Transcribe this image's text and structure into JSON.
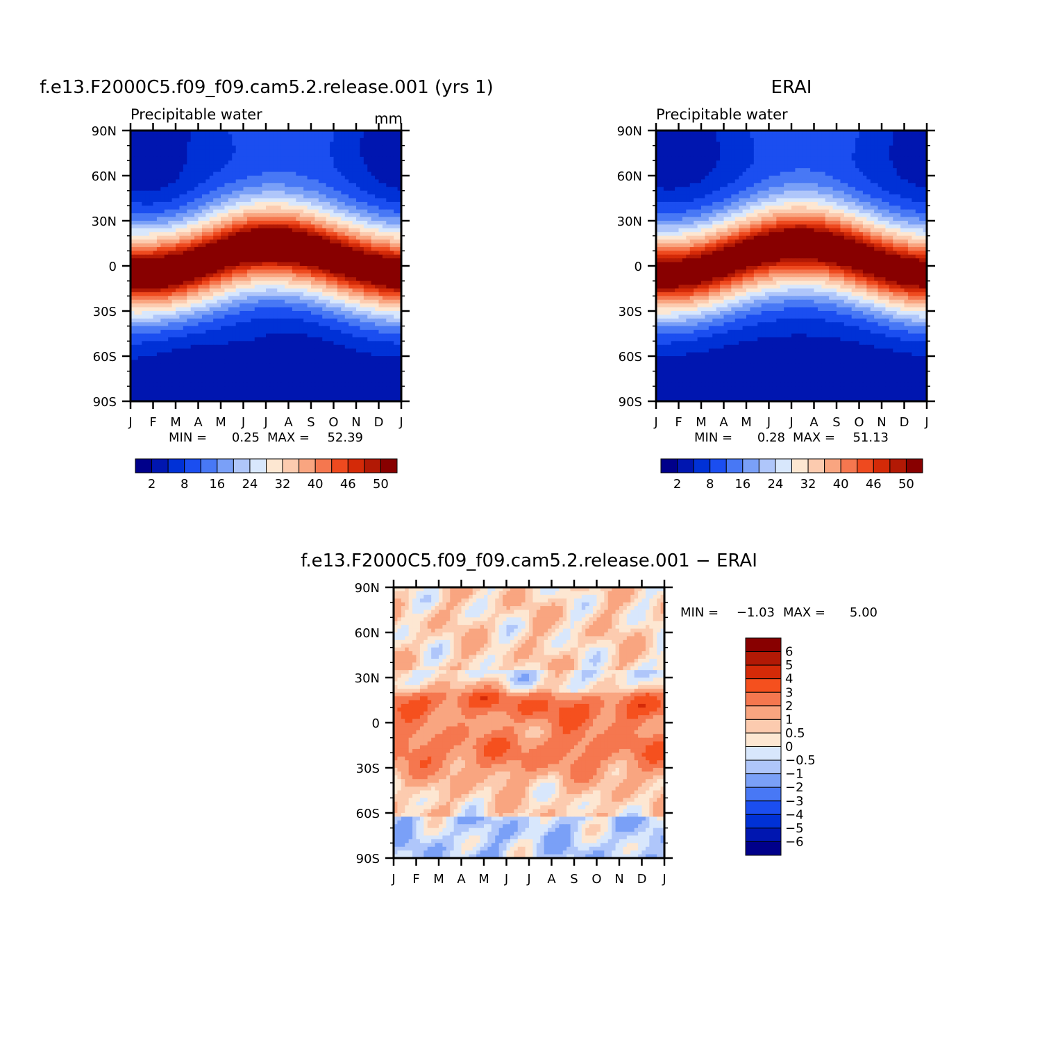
{
  "page": {
    "background": "#ffffff"
  },
  "chart_data": [
    {
      "type": "heatmap",
      "title": "f.e13.F2000C5.f09_f09.cam5.2.release.001 (yrs 1)",
      "subtitle": "Precipitable water",
      "units": "mm",
      "x_ticks": [
        "J",
        "F",
        "M",
        "A",
        "M",
        "J",
        "J",
        "A",
        "S",
        "O",
        "N",
        "D",
        "J"
      ],
      "y_ticks": [
        "90N",
        "60N",
        "30N",
        "0",
        "30S",
        "60S",
        "90S"
      ],
      "ylim": [
        -90,
        90
      ],
      "stats": {
        "min_label": "MIN =",
        "min": "0.25",
        "max_label": "MAX =",
        "max": "52.39"
      },
      "colorbar": {
        "orientation": "horizontal",
        "colors": [
          "#00008a",
          "#0016b0",
          "#0031d6",
          "#1b4ef0",
          "#4878f5",
          "#7aa0f7",
          "#afc6fa",
          "#d8e7fc",
          "#fde7d2",
          "#fccbaf",
          "#f9a580",
          "#f5774f",
          "#ee4a1f",
          "#d42a08",
          "#b21905",
          "#880000"
        ],
        "labels": [
          "2",
          "8",
          "16",
          "24",
          "32",
          "40",
          "46",
          "50"
        ]
      },
      "field": "model"
    },
    {
      "type": "heatmap",
      "title": "ERAI",
      "subtitle": "Precipitable water",
      "units": "",
      "x_ticks": [
        "J",
        "F",
        "M",
        "A",
        "M",
        "J",
        "J",
        "A",
        "S",
        "O",
        "N",
        "D",
        "J"
      ],
      "y_ticks": [
        "90N",
        "60N",
        "30N",
        "0",
        "30S",
        "60S",
        "90S"
      ],
      "ylim": [
        -90,
        90
      ],
      "stats": {
        "min_label": "MIN =",
        "min": "0.28",
        "max_label": "MAX =",
        "max": "51.13"
      },
      "colorbar": {
        "orientation": "horizontal",
        "colors": [
          "#00008a",
          "#0016b0",
          "#0031d6",
          "#1b4ef0",
          "#4878f5",
          "#7aa0f7",
          "#afc6fa",
          "#d8e7fc",
          "#fde7d2",
          "#fccbaf",
          "#f9a580",
          "#f5774f",
          "#ee4a1f",
          "#d42a08",
          "#b21905",
          "#880000"
        ],
        "labels": [
          "2",
          "8",
          "16",
          "24",
          "32",
          "40",
          "46",
          "50"
        ]
      },
      "field": "obs"
    },
    {
      "type": "heatmap",
      "title": "f.e13.F2000C5.f09_f09.cam5.2.release.001 − ERAI",
      "x_ticks": [
        "J",
        "F",
        "M",
        "A",
        "M",
        "J",
        "J",
        "A",
        "S",
        "O",
        "N",
        "D",
        "J"
      ],
      "y_ticks": [
        "90N",
        "60N",
        "30N",
        "0",
        "30S",
        "60S",
        "90S"
      ],
      "ylim": [
        -90,
        90
      ],
      "stats": {
        "min_label": "MIN =",
        "min": "−1.03",
        "max_label": "MAX =",
        "max": "5.00"
      },
      "colorbar": {
        "orientation": "vertical",
        "colors": [
          "#880000",
          "#b21905",
          "#d42a08",
          "#f5501e",
          "#f5774f",
          "#f9a580",
          "#fccbaf",
          "#fde7d2",
          "#d8e7fc",
          "#afc6fa",
          "#7aa0f7",
          "#4878f5",
          "#1b4ef0",
          "#0031d6",
          "#0016b0",
          "#00008a"
        ],
        "labels": [
          "6",
          "5",
          "4",
          "3",
          "2",
          "1",
          "0.5",
          "0",
          "−0.5",
          "−1",
          "−2",
          "−3",
          "−4",
          "−5",
          "−6"
        ]
      },
      "field": "diff"
    }
  ]
}
